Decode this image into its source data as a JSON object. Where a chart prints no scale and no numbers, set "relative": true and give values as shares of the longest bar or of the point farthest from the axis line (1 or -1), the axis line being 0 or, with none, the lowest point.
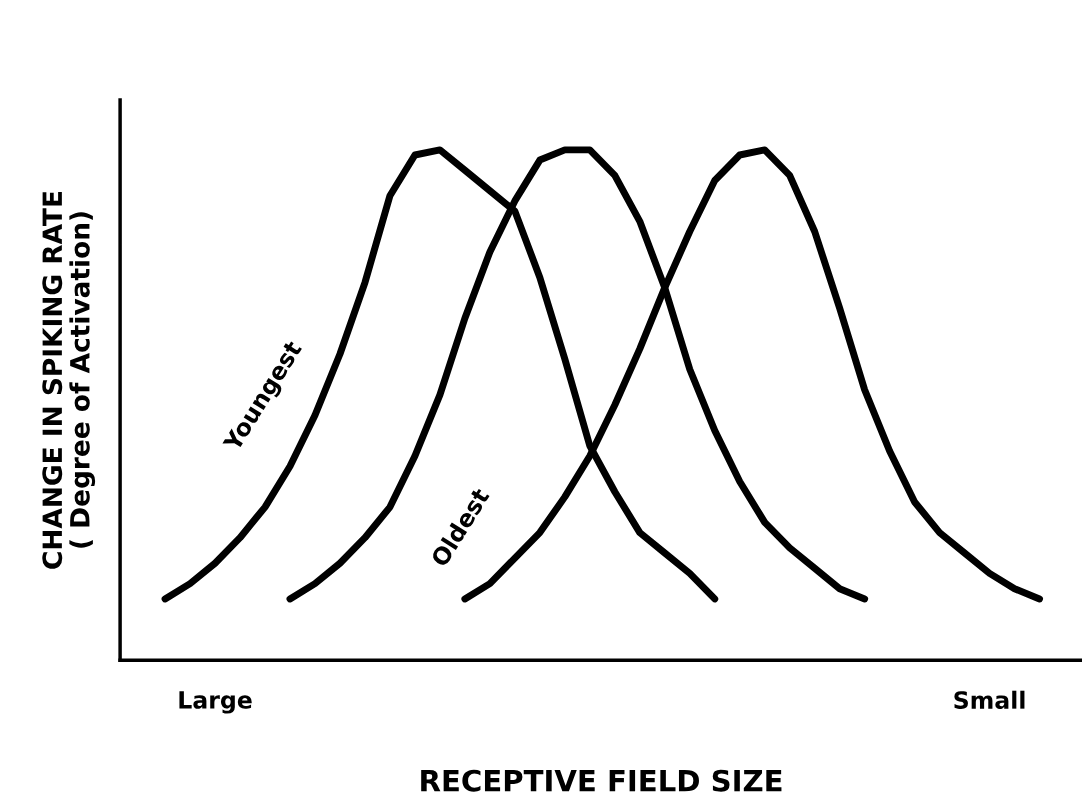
{
  "chart_data": {
    "type": "line",
    "relative": true,
    "xlabel": "RECEPTIVE FIELD SIZE",
    "ylabel": "CHANGE IN SPIKING RATE\n( Degree of Activation)",
    "categories": [
      null,
      null,
      "Large",
      null,
      null,
      null,
      null,
      null,
      null,
      null,
      null,
      null,
      null,
      null,
      null,
      null,
      null,
      null,
      null,
      null,
      null,
      null,
      null,
      null,
      null,
      null,
      null,
      null,
      null,
      null,
      null,
      null,
      null,
      "Small",
      null,
      null
    ],
    "series": [
      {
        "color": "#000000",
        "values": [
          0.12,
          0.15,
          0.19,
          0.24,
          0.3,
          0.38,
          0.48,
          0.6,
          0.74,
          0.91,
          0.99,
          1.0,
          0.96,
          0.92,
          0.88,
          0.75,
          0.59,
          0.42,
          0.33,
          0.25,
          0.21,
          0.17,
          0.12,
          null,
          null,
          null,
          null,
          null,
          null,
          null,
          null,
          null,
          null,
          null,
          null,
          null
        ]
      },
      {
        "color": "#000000",
        "values": [
          null,
          null,
          null,
          null,
          null,
          0.12,
          0.15,
          0.19,
          0.24,
          0.3,
          0.4,
          0.52,
          0.67,
          0.8,
          0.9,
          0.98,
          1.0,
          1.0,
          0.95,
          0.86,
          0.73,
          0.57,
          0.45,
          0.35,
          0.27,
          0.22,
          0.18,
          0.14,
          0.12,
          null,
          null,
          null,
          null,
          null,
          null,
          null
        ]
      },
      {
        "color": "#000000",
        "values": [
          null,
          null,
          null,
          null,
          null,
          null,
          null,
          null,
          null,
          null,
          null,
          null,
          0.12,
          0.15,
          0.2,
          0.25,
          0.32,
          0.4,
          0.5,
          0.61,
          0.73,
          0.84,
          0.94,
          0.99,
          1.0,
          0.95,
          0.84,
          0.69,
          0.53,
          0.41,
          0.31,
          0.25,
          0.21,
          0.17,
          0.14,
          0.12
        ]
      }
    ],
    "annotations": [
      "Youngest",
      "Oldest"
    ],
    "grid": false,
    "legend": false
  }
}
